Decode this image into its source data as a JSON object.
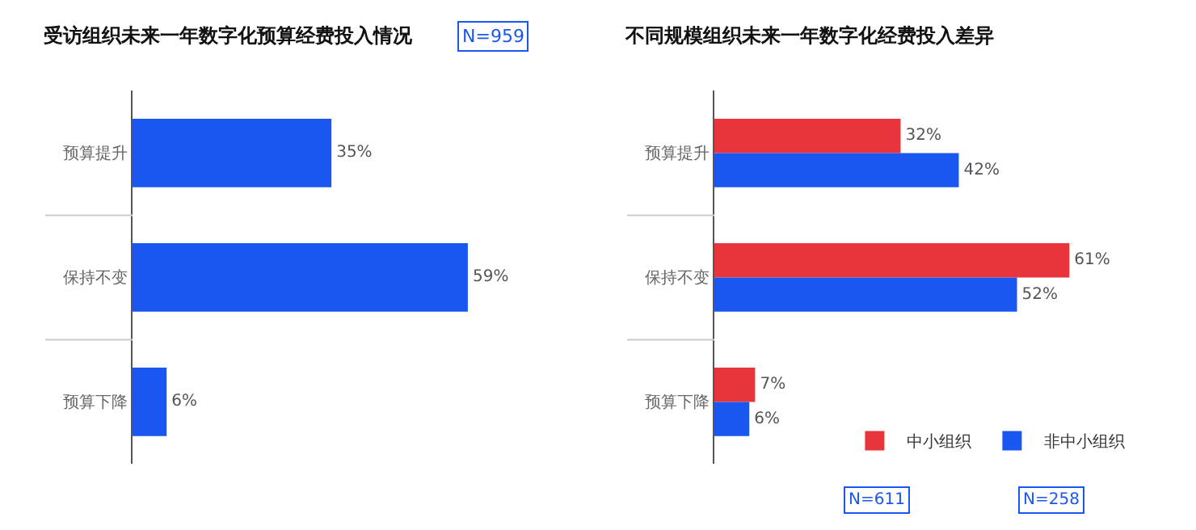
{
  "chart_data": [
    {
      "type": "bar",
      "orientation": "horizontal",
      "title": "受访组织未来一年数字化预算经费投入情况",
      "annotations": [
        "N=959"
      ],
      "categories": [
        "预算提升",
        "保持不变",
        "预算下降"
      ],
      "values": [
        35,
        59,
        6
      ],
      "value_labels": [
        "35%",
        "59%",
        "6%"
      ],
      "color": "#1a56f0",
      "legend": false
    },
    {
      "type": "bar",
      "orientation": "horizontal",
      "title": "不同规模组织未来一年数字化经费投入差异",
      "annotations": [
        "N=611",
        "N=258"
      ],
      "categories": [
        "预算提升",
        "保持不变",
        "预算下降"
      ],
      "legend": "bottom right",
      "series": [
        {
          "name": "中小组织",
          "color": "#e8343a",
          "values": [
            32,
            61,
            7
          ],
          "value_labels": [
            "32%",
            "61%",
            "7%"
          ]
        },
        {
          "name": "非中小组织",
          "color": "#1a56f0",
          "values": [
            42,
            52,
            6
          ],
          "value_labels": [
            "42%",
            "52%",
            "6%"
          ]
        }
      ]
    }
  ]
}
